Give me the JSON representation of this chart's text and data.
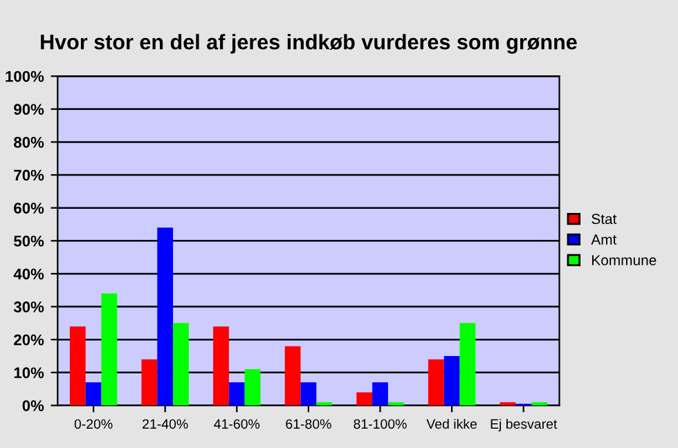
{
  "chart_data": {
    "type": "bar",
    "title": "Hvor stor en del af jeres indkøb vurderes som grønne",
    "categories": [
      "0-20%",
      "21-40%",
      "41-60%",
      "61-80%",
      "81-100%",
      "Ved ikke",
      "Ej besvaret"
    ],
    "series": [
      {
        "name": "Stat",
        "color": "#ff0000",
        "values": [
          24,
          14,
          24,
          18,
          4,
          14,
          1
        ]
      },
      {
        "name": "Amt",
        "color": "#0000ff",
        "values": [
          7,
          54,
          7,
          7,
          7,
          15,
          0.5
        ]
      },
      {
        "name": "Kommune",
        "color": "#00ff00",
        "values": [
          34,
          25,
          11,
          1,
          1,
          25,
          1
        ]
      }
    ],
    "ylim": [
      0,
      100
    ],
    "yticks": [
      {
        "value": 0,
        "label": "0%"
      },
      {
        "value": 10,
        "label": "10%"
      },
      {
        "value": 20,
        "label": "20%"
      },
      {
        "value": 30,
        "label": "30%"
      },
      {
        "value": 40,
        "label": "40%"
      },
      {
        "value": 50,
        "label": "50%"
      },
      {
        "value": 60,
        "label": "60%"
      },
      {
        "value": 70,
        "label": "70%"
      },
      {
        "value": 80,
        "label": "80%"
      },
      {
        "value": 90,
        "label": "90%"
      },
      {
        "value": 100,
        "label": "100%"
      }
    ],
    "grid": "y",
    "legend": "right"
  }
}
